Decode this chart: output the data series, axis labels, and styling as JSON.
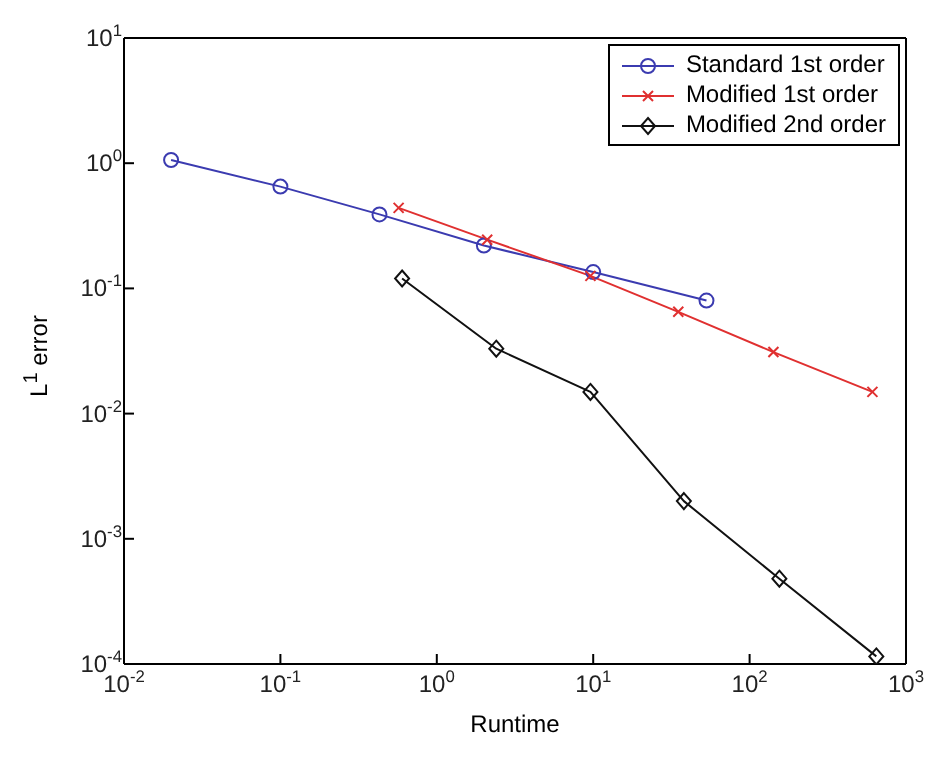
{
  "chart_data": {
    "type": "line",
    "xlabel": "Runtime",
    "ylabel": "L$^{1}$ error",
    "log": "xy",
    "legend": "top right",
    "xlim": [
      0.01,
      1000
    ],
    "ylim": [
      0.0001,
      10
    ],
    "xticks": [
      {
        "value": 0.01,
        "label": "10$^{-2}$"
      },
      {
        "value": 0.1,
        "label": "10$^{-1}$"
      },
      {
        "value": 1,
        "label": "10$^{0}$"
      },
      {
        "value": 10,
        "label": "10$^{1}$"
      },
      {
        "value": 100,
        "label": "10$^{2}$"
      },
      {
        "value": 1000,
        "label": "10$^{3}$"
      }
    ],
    "yticks": [
      {
        "value": 0.0001,
        "label": "10$^{-4}$"
      },
      {
        "value": 0.001,
        "label": "10$^{-3}$"
      },
      {
        "value": 0.01,
        "label": "10$^{-2}$"
      },
      {
        "value": 0.1,
        "label": "10$^{-1}$"
      },
      {
        "value": 1,
        "label": "10$^{0}$"
      },
      {
        "value": 10,
        "label": "10$^{1}$"
      }
    ],
    "series": [
      {
        "name": "Standard 1st order",
        "color": "#3b3bb0",
        "marker": "circle",
        "x": [
          0.02,
          0.1,
          0.43,
          2.0,
          10,
          53
        ],
        "values": [
          1.06,
          0.65,
          0.39,
          0.22,
          0.135,
          0.08
        ]
      },
      {
        "name": "Modified 1st order",
        "color": "#e03030",
        "marker": "cross",
        "x": [
          0.57,
          2.1,
          9.6,
          35,
          142,
          610
        ],
        "values": [
          0.44,
          0.245,
          0.126,
          0.065,
          0.031,
          0.0149
        ]
      },
      {
        "name": "Modified 2nd order",
        "color": "#111111",
        "marker": "diamond",
        "x": [
          0.6,
          2.4,
          9.6,
          38,
          155,
          646
        ],
        "values": [
          0.12,
          0.033,
          0.0149,
          0.002,
          0.00048,
          0.000115
        ]
      }
    ]
  }
}
